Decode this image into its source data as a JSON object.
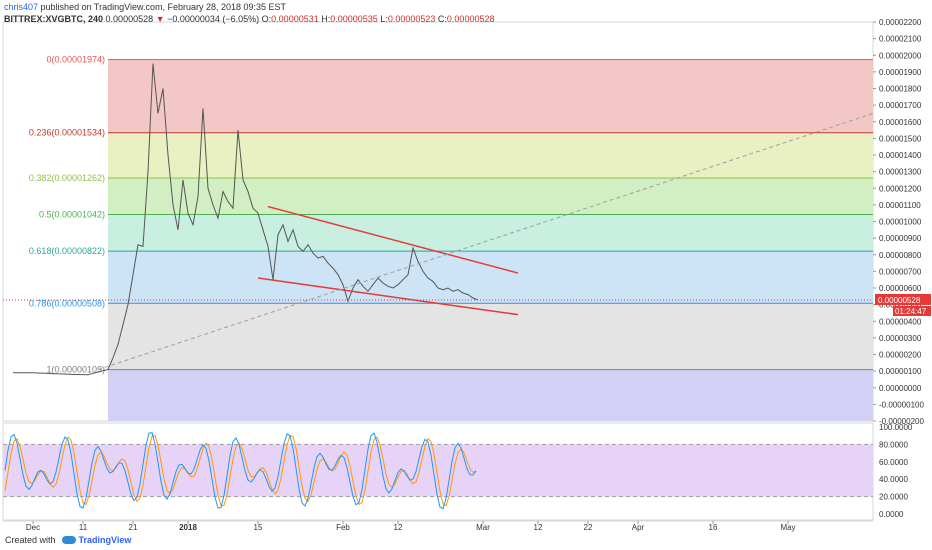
{
  "header": {
    "author": "chris407",
    "published": "published on TradingView.com, February 28, 2018 09:35 EST",
    "symbol": "BITTREX:XVGBTC, 240",
    "close_value": "0.00000528",
    "change_arrow": "▼",
    "change": "−0.00000034 (−6.05%)",
    "o_label": "O:",
    "o_value": "0.00000531",
    "h_label": "H:",
    "h_value": "0.00000535",
    "l_label": "L:",
    "l_value": "0.00000523",
    "c_label": "C:",
    "c_value": "0.00000528"
  },
  "footer": {
    "created_with": "Created with",
    "brand": "TradingView"
  },
  "chart_data": {
    "type": "line",
    "title": "BITTREX:XVGBTC, 240",
    "price_axis": {
      "min": -2e-06,
      "max": 2.2e-05,
      "ticks": [
        "0.00002200",
        "0.00002100",
        "0.00002000",
        "0.00001900",
        "0.00001800",
        "0.00001700",
        "0.00001600",
        "0.00001500",
        "0.00001400",
        "0.00001300",
        "0.00001200",
        "0.00001100",
        "0.00001000",
        "0.00000900",
        "0.00000800",
        "0.00000700",
        "0.00000600",
        "0.00000500",
        "0.00000400",
        "0.00000300",
        "0.00000200",
        "0.00000100",
        "0.00000000",
        "-0.00000100",
        "-0.00000200"
      ]
    },
    "time_axis": {
      "ticks": [
        {
          "label": "Dec",
          "date": "2017-12-01",
          "bold": false
        },
        {
          "label": "11",
          "date": "2017-12-11",
          "bold": false
        },
        {
          "label": "21",
          "date": "2017-12-21",
          "bold": false
        },
        {
          "label": "2018",
          "date": "2018-01-01",
          "bold": true
        },
        {
          "label": "15",
          "date": "2018-01-15",
          "bold": false
        },
        {
          "label": "Feb",
          "date": "2018-02-01",
          "bold": false
        },
        {
          "label": "12",
          "date": "2018-02-12",
          "bold": false
        },
        {
          "label": "Mar",
          "date": "2018-03-01",
          "bold": false
        },
        {
          "label": "12",
          "date": "2018-03-12",
          "bold": false
        },
        {
          "label": "22",
          "date": "2018-03-22",
          "bold": false
        },
        {
          "label": "Apr",
          "date": "2018-04-01",
          "bold": false
        },
        {
          "label": "16",
          "date": "2018-04-16",
          "bold": false
        },
        {
          "label": "May",
          "date": "2018-05-01",
          "bold": false
        }
      ]
    },
    "last_price": {
      "value": 5.28e-06,
      "label": "0.00000528",
      "countdown": "01:24:47"
    },
    "fib_levels": [
      {
        "ratio": "0",
        "label": "0(0.00001974)",
        "price": 1.974e-05,
        "color": "#ef5350"
      },
      {
        "ratio": "0.236",
        "label": "0.236(0.00001534)",
        "price": 1.534e-05,
        "color": "#c0392b"
      },
      {
        "ratio": "0.382",
        "label": "0.382(0.00001262)",
        "price": 1.262e-05,
        "color": "#8bc34a"
      },
      {
        "ratio": "0.5",
        "label": "0.5(0.00001042)",
        "price": 1.042e-05,
        "color": "#4caf50"
      },
      {
        "ratio": "0.618",
        "label": "0.618(0.00000822)",
        "price": 8.22e-06,
        "color": "#26a69a"
      },
      {
        "ratio": "0.786",
        "label": "0.786(0.00000508)",
        "price": 5.08e-06,
        "color": "#2196f3"
      },
      {
        "ratio": "1",
        "label": "1(0.00000109)",
        "price": 1.09e-06,
        "color": "#808080"
      }
    ],
    "fib_bands": [
      {
        "from": 1.974e-05,
        "to": 1.534e-05,
        "color": "#f4c7c7"
      },
      {
        "from": 1.534e-05,
        "to": 1.262e-05,
        "color": "#e9f0c2"
      },
      {
        "from": 1.262e-05,
        "to": 1.042e-05,
        "color": "#d2efc4"
      },
      {
        "from": 1.042e-05,
        "to": 8.22e-06,
        "color": "#c8efe0"
      },
      {
        "from": 8.22e-06,
        "to": 5.08e-06,
        "color": "#cde4f6"
      },
      {
        "from": 5.08e-06,
        "to": 1.09e-06,
        "color": "#e4e4e4"
      },
      {
        "from": 1.09e-06,
        "to": -2e-06,
        "color": "#d3d0f5"
      }
    ],
    "fib_start_date": "2017-12-16",
    "fib_end_date": "2018-05-16",
    "price_series": [
      {
        "d": "2017-11-27",
        "p": 9e-07
      },
      {
        "d": "2017-12-01",
        "p": 9e-07
      },
      {
        "d": "2017-12-05",
        "p": 8.5e-07
      },
      {
        "d": "2017-12-09",
        "p": 8e-07
      },
      {
        "d": "2017-12-12",
        "p": 7.8e-07
      },
      {
        "d": "2017-12-14",
        "p": 9.5e-07
      },
      {
        "d": "2017-12-16",
        "p": 1.1e-06
      },
      {
        "d": "2017-12-17",
        "p": 1.8e-06
      },
      {
        "d": "2017-12-18",
        "p": 2.6e-06
      },
      {
        "d": "2017-12-19",
        "p": 3.8e-06
      },
      {
        "d": "2017-12-20",
        "p": 5e-06
      },
      {
        "d": "2017-12-21",
        "p": 6.8e-06
      },
      {
        "d": "2017-12-22",
        "p": 8.6e-06
      },
      {
        "d": "2017-12-23",
        "p": 8.5e-06
      },
      {
        "d": "2017-12-24",
        "p": 1.3e-05
      },
      {
        "d": "2017-12-25",
        "p": 1.95e-05
      },
      {
        "d": "2017-12-26",
        "p": 1.65e-05
      },
      {
        "d": "2017-12-27",
        "p": 1.8e-05
      },
      {
        "d": "2017-12-28",
        "p": 1.4e-05
      },
      {
        "d": "2017-12-29",
        "p": 1.1e-05
      },
      {
        "d": "2017-12-30",
        "p": 9.5e-06
      },
      {
        "d": "2017-12-31",
        "p": 1.25e-05
      },
      {
        "d": "2018-01-01",
        "p": 1.05e-05
      },
      {
        "d": "2018-01-02",
        "p": 9.8e-06
      },
      {
        "d": "2018-01-03",
        "p": 1.15e-05
      },
      {
        "d": "2018-01-04",
        "p": 1.68e-05
      },
      {
        "d": "2018-01-05",
        "p": 1.2e-05
      },
      {
        "d": "2018-01-06",
        "p": 1.1e-05
      },
      {
        "d": "2018-01-07",
        "p": 1.02e-05
      },
      {
        "d": "2018-01-08",
        "p": 1.18e-05
      },
      {
        "d": "2018-01-09",
        "p": 1.12e-05
      },
      {
        "d": "2018-01-10",
        "p": 1.08e-05
      },
      {
        "d": "2018-01-11",
        "p": 1.55e-05
      },
      {
        "d": "2018-01-12",
        "p": 1.25e-05
      },
      {
        "d": "2018-01-13",
        "p": 1.18e-05
      },
      {
        "d": "2018-01-14",
        "p": 1.08e-05
      },
      {
        "d": "2018-01-15",
        "p": 1.05e-05
      },
      {
        "d": "2018-01-16",
        "p": 9.5e-06
      },
      {
        "d": "2018-01-17",
        "p": 8.5e-06
      },
      {
        "d": "2018-01-18",
        "p": 6.5e-06
      },
      {
        "d": "2018-01-19",
        "p": 9.2e-06
      },
      {
        "d": "2018-01-20",
        "p": 9.8e-06
      },
      {
        "d": "2018-01-21",
        "p": 8.8e-06
      },
      {
        "d": "2018-01-22",
        "p": 9.5e-06
      },
      {
        "d": "2018-01-23",
        "p": 8.5e-06
      },
      {
        "d": "2018-01-24",
        "p": 8.2e-06
      },
      {
        "d": "2018-01-25",
        "p": 8.6e-06
      },
      {
        "d": "2018-01-26",
        "p": 8.1e-06
      },
      {
        "d": "2018-01-27",
        "p": 7.8e-06
      },
      {
        "d": "2018-01-28",
        "p": 7.9e-06
      },
      {
        "d": "2018-01-29",
        "p": 7.5e-06
      },
      {
        "d": "2018-01-30",
        "p": 7.2e-06
      },
      {
        "d": "2018-01-31",
        "p": 6.8e-06
      },
      {
        "d": "2018-02-01",
        "p": 6.2e-06
      },
      {
        "d": "2018-02-02",
        "p": 5.2e-06
      },
      {
        "d": "2018-02-03",
        "p": 6e-06
      },
      {
        "d": "2018-02-04",
        "p": 6.5e-06
      },
      {
        "d": "2018-02-05",
        "p": 6.1e-06
      },
      {
        "d": "2018-02-06",
        "p": 5.8e-06
      },
      {
        "d": "2018-02-07",
        "p": 6.2e-06
      },
      {
        "d": "2018-02-08",
        "p": 6.6e-06
      },
      {
        "d": "2018-02-09",
        "p": 6.3e-06
      },
      {
        "d": "2018-02-10",
        "p": 6.1e-06
      },
      {
        "d": "2018-02-11",
        "p": 6e-06
      },
      {
        "d": "2018-02-12",
        "p": 6.2e-06
      },
      {
        "d": "2018-02-13",
        "p": 6.5e-06
      },
      {
        "d": "2018-02-14",
        "p": 6.8e-06
      },
      {
        "d": "2018-02-15",
        "p": 8.4e-06
      },
      {
        "d": "2018-02-16",
        "p": 7.6e-06
      },
      {
        "d": "2018-02-17",
        "p": 7e-06
      },
      {
        "d": "2018-02-18",
        "p": 6.6e-06
      },
      {
        "d": "2018-02-19",
        "p": 6.4e-06
      },
      {
        "d": "2018-02-20",
        "p": 6e-06
      },
      {
        "d": "2018-02-21",
        "p": 5.9e-06
      },
      {
        "d": "2018-02-22",
        "p": 6e-06
      },
      {
        "d": "2018-02-23",
        "p": 5.8e-06
      },
      {
        "d": "2018-02-24",
        "p": 5.9e-06
      },
      {
        "d": "2018-02-25",
        "p": 5.7e-06
      },
      {
        "d": "2018-02-26",
        "p": 5.6e-06
      },
      {
        "d": "2018-02-27",
        "p": 5.4e-06
      },
      {
        "d": "2018-02-28",
        "p": 5.28e-06
      }
    ],
    "trendlines": [
      {
        "name": "upper-trendline",
        "color": "#e53935",
        "dashed": false,
        "from": {
          "d": "2018-01-17",
          "p": 1.09e-05
        },
        "to": {
          "d": "2018-03-08",
          "p": 6.9e-06
        }
      },
      {
        "name": "lower-trendline",
        "color": "#e53935",
        "dashed": false,
        "from": {
          "d": "2018-01-15",
          "p": 6.6e-06
        },
        "to": {
          "d": "2018-03-08",
          "p": 4.4e-06
        }
      },
      {
        "name": "diagonal-trendline",
        "color": "#9e9e9e",
        "dashed": true,
        "from": {
          "d": "2017-12-14",
          "p": 1.09e-06
        },
        "to": {
          "d": "2018-05-18",
          "p": 1.65e-05
        }
      }
    ],
    "stochastic": {
      "ticks": [
        {
          "label": "100.0000",
          "value": 100
        },
        {
          "label": "80.0000",
          "value": 80
        },
        {
          "label": "60.0000",
          "value": 60
        },
        {
          "label": "40.0000",
          "value": 40
        },
        {
          "label": "20.0000",
          "value": 20
        },
        {
          "label": "0.0000",
          "value": 0
        }
      ],
      "upper_band": 80,
      "lower_band": 20,
      "k_color": "#2196f3",
      "d_color": "#ff9800",
      "band_color": "#e8d3f8"
    }
  }
}
